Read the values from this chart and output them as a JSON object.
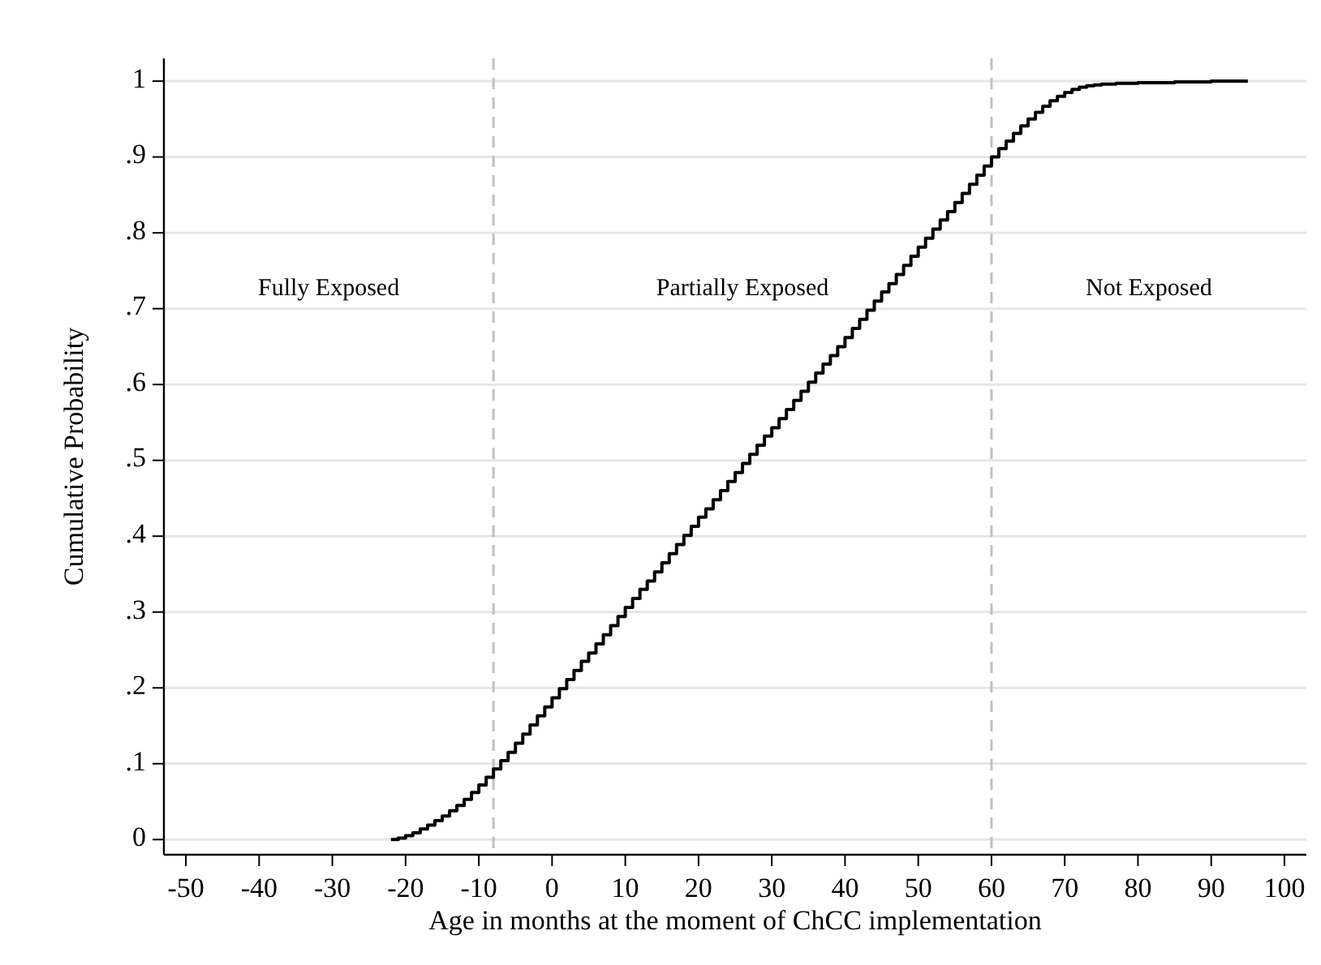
{
  "chart_data": {
    "type": "step",
    "xlabel": "Age in months at the moment of ChCC implementation",
    "ylabel": "Cumulative Probability",
    "xlim": [
      -53,
      103
    ],
    "ylim": [
      -0.02,
      1.03
    ],
    "xticks": [
      -50,
      -40,
      -30,
      -20,
      -10,
      0,
      10,
      20,
      30,
      40,
      50,
      60,
      70,
      80,
      90,
      100
    ],
    "yticks": [
      0,
      {
        "value": 0.1,
        "label": ".1"
      },
      {
        "value": 0.2,
        "label": ".2"
      },
      {
        "value": 0.3,
        "label": ".3"
      },
      {
        "value": 0.4,
        "label": ".4"
      },
      {
        "value": 0.5,
        "label": ".5"
      },
      {
        "value": 0.6,
        "label": ".6"
      },
      {
        "value": 0.7,
        "label": ".7"
      },
      {
        "value": 0.8,
        "label": ".8"
      },
      {
        "value": 0.9,
        "label": ".9"
      },
      1
    ],
    "grid": "y",
    "marker": "none",
    "line_style": "solid",
    "ref_lines": [
      {
        "axis": "x",
        "value": -8,
        "color": "#c0c0c0",
        "line_style": "dashed"
      },
      {
        "axis": "x",
        "value": 60,
        "color": "#c0c0c0",
        "line_style": "dashed"
      }
    ],
    "annotations": [
      "Fully Exposed",
      "Partially Exposed",
      "Not Exposed"
    ],
    "series": [
      {
        "color": "#000000",
        "x": [
          -22,
          -21,
          -20,
          -19,
          -18,
          -17,
          -16,
          -15,
          -14,
          -13,
          -12,
          -11,
          -10,
          -9,
          -8,
          -7,
          -6,
          -5,
          -4,
          -3,
          -2,
          -1,
          0,
          1,
          2,
          3,
          4,
          5,
          6,
          7,
          8,
          9,
          10,
          11,
          12,
          13,
          14,
          15,
          16,
          17,
          18,
          19,
          20,
          21,
          22,
          23,
          24,
          25,
          26,
          27,
          28,
          29,
          30,
          31,
          32,
          33,
          34,
          35,
          36,
          37,
          38,
          39,
          40,
          41,
          42,
          43,
          44,
          45,
          46,
          47,
          48,
          49,
          50,
          51,
          52,
          53,
          54,
          55,
          56,
          57,
          58,
          59,
          60,
          61,
          62,
          63,
          64,
          65,
          66,
          67,
          68,
          69,
          70,
          71,
          72,
          73,
          74,
          75,
          77,
          80,
          85,
          90,
          95
        ],
        "values": [
          0,
          0.002,
          0.005,
          0.009,
          0.014,
          0.019,
          0.025,
          0.031,
          0.038,
          0.045,
          0.053,
          0.062,
          0.072,
          0.082,
          0.093,
          0.104,
          0.115,
          0.127,
          0.139,
          0.151,
          0.163,
          0.175,
          0.187,
          0.199,
          0.211,
          0.223,
          0.235,
          0.246,
          0.258,
          0.27,
          0.282,
          0.294,
          0.306,
          0.318,
          0.33,
          0.341,
          0.353,
          0.365,
          0.377,
          0.389,
          0.401,
          0.413,
          0.425,
          0.436,
          0.448,
          0.46,
          0.472,
          0.484,
          0.496,
          0.508,
          0.52,
          0.532,
          0.543,
          0.555,
          0.567,
          0.579,
          0.591,
          0.603,
          0.615,
          0.627,
          0.638,
          0.65,
          0.662,
          0.674,
          0.686,
          0.698,
          0.71,
          0.722,
          0.733,
          0.745,
          0.757,
          0.769,
          0.781,
          0.793,
          0.805,
          0.817,
          0.828,
          0.84,
          0.852,
          0.864,
          0.876,
          0.888,
          0.9,
          0.911,
          0.921,
          0.931,
          0.941,
          0.95,
          0.959,
          0.967,
          0.974,
          0.98,
          0.985,
          0.989,
          0.992,
          0.994,
          0.995,
          0.996,
          0.997,
          0.998,
          0.999,
          1,
          1
        ]
      }
    ]
  }
}
